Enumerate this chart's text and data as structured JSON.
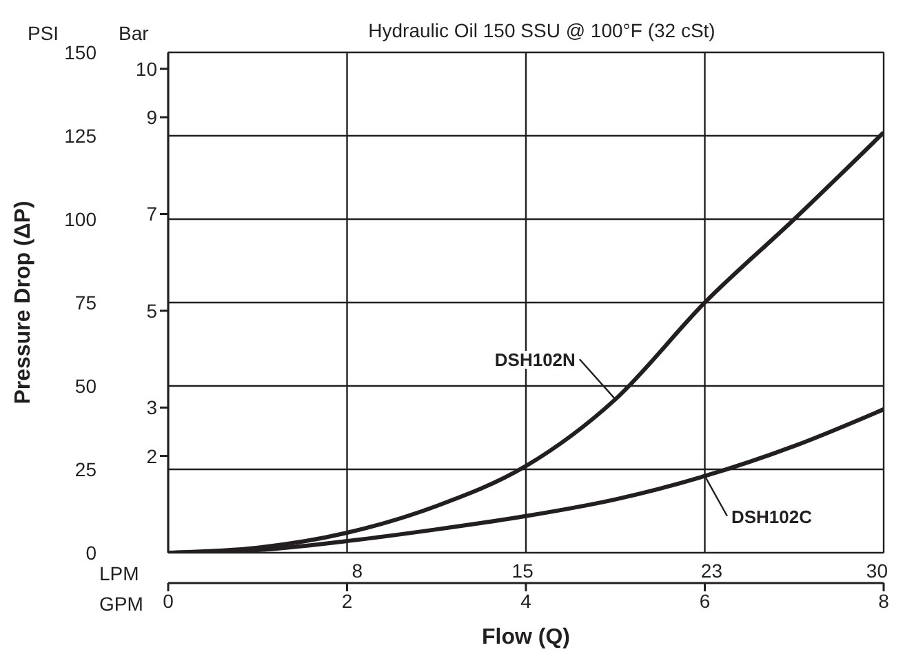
{
  "chart_data": {
    "type": "line",
    "title": "Hydraulic Oil 150 SSU @ 100°F (32 cSt)",
    "xlabel": "Flow (Q)",
    "ylabel": "Pressure Drop (ΔP)",
    "x": [
      0,
      1,
      2,
      3,
      4,
      5,
      6,
      7,
      8
    ],
    "series": [
      {
        "name": "DSH102N",
        "color": "#231f20",
        "values": [
          0,
          1.5,
          6,
          14,
          26,
          46,
          75,
          100,
          126
        ]
      },
      {
        "name": "DSH102C",
        "color": "#231f20",
        "values": [
          0,
          0.8,
          3.5,
          7,
          11,
          16,
          23,
          32,
          43
        ]
      }
    ],
    "xlim": [
      0,
      8
    ],
    "xticks": [
      0,
      2,
      4,
      6,
      8
    ],
    "x2lim": [
      0,
      30.28
    ],
    "x2ticks": [
      8,
      15,
      23,
      30
    ],
    "ylim": [
      0,
      150
    ],
    "yticks": [
      0,
      25,
      50,
      75,
      100,
      125,
      150
    ],
    "y2lim": [
      0,
      10.34
    ],
    "y2ticks": [
      2,
      3,
      5,
      7,
      9,
      10
    ],
    "annotations": [
      "PSI",
      "Bar",
      "LPM",
      "GPM"
    ],
    "grid": true,
    "marker": "none",
    "line_style": "solid"
  }
}
